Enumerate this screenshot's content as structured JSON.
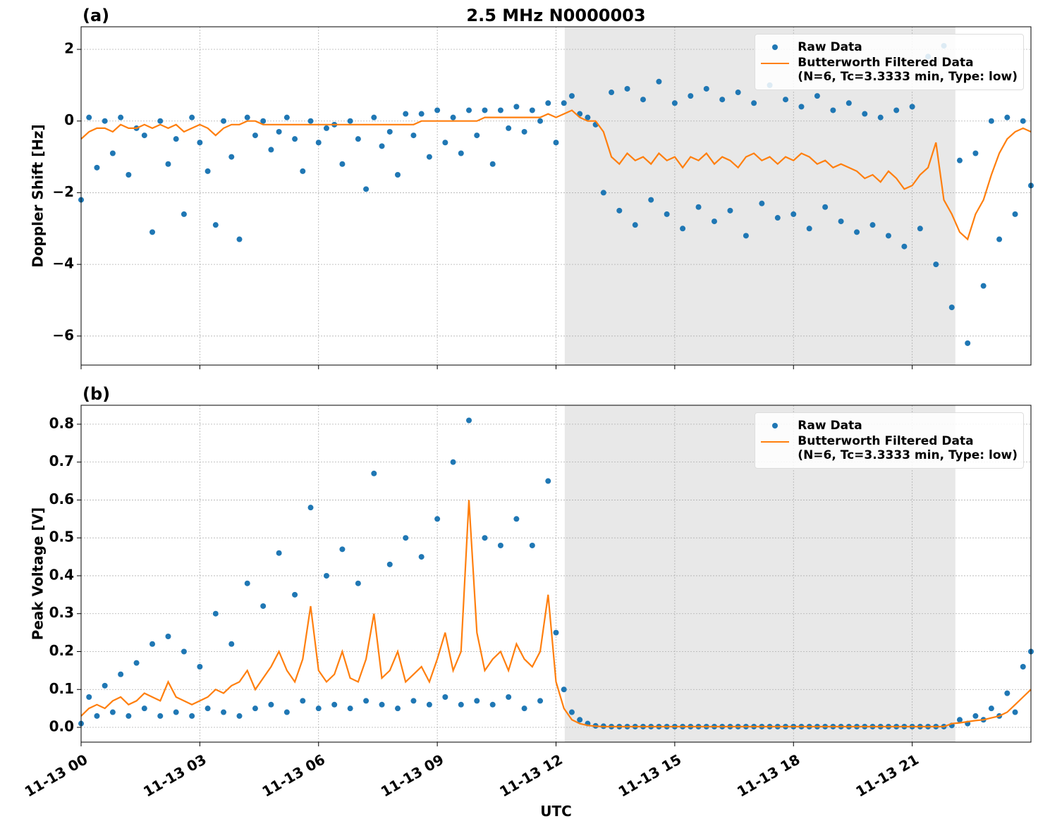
{
  "chart_data": [
    {
      "type": "line",
      "panel_label": "(a)",
      "title": "2.5 MHz N0000003",
      "ylabel": "Doppler Shift [Hz]",
      "xlim": [
        0,
        24
      ],
      "xticks": [
        0,
        3,
        6,
        9,
        12,
        15,
        18,
        21
      ],
      "ylim": [
        -6.81,
        2.63
      ],
      "yticks": [
        {
          "value": -6,
          "label": "−6"
        },
        {
          "value": -4,
          "label": "−4"
        },
        {
          "value": -2,
          "label": "−2"
        },
        0,
        2
      ],
      "grid": true,
      "legend": "upper right",
      "shaded_span": [
        12.22,
        22.09
      ],
      "x": [
        0,
        0.2,
        0.4,
        0.6,
        0.8,
        1,
        1.2,
        1.4,
        1.6,
        1.8,
        2,
        2.2,
        2.4,
        2.6,
        2.8,
        3,
        3.2,
        3.4,
        3.6,
        3.8,
        4,
        4.2,
        4.4,
        4.6,
        4.8,
        5,
        5.2,
        5.4,
        5.6,
        5.8,
        6,
        6.2,
        6.4,
        6.6,
        6.8,
        7,
        7.2,
        7.4,
        7.6,
        7.8,
        8,
        8.2,
        8.4,
        8.6,
        8.8,
        9,
        9.2,
        9.4,
        9.6,
        9.8,
        10,
        10.2,
        10.4,
        10.6,
        10.8,
        11,
        11.2,
        11.4,
        11.6,
        11.8,
        12,
        12.2,
        12.4,
        12.6,
        12.8,
        13,
        13.2,
        13.4,
        13.6,
        13.8,
        14,
        14.2,
        14.4,
        14.6,
        14.8,
        15,
        15.2,
        15.4,
        15.6,
        15.8,
        16,
        16.2,
        16.4,
        16.6,
        16.8,
        17,
        17.2,
        17.4,
        17.6,
        17.8,
        18,
        18.2,
        18.4,
        18.6,
        18.8,
        19,
        19.2,
        19.4,
        19.6,
        19.8,
        20,
        20.2,
        20.4,
        20.6,
        20.8,
        21,
        21.2,
        21.4,
        21.6,
        21.8,
        22,
        22.2,
        22.4,
        22.6,
        22.8,
        23,
        23.2,
        23.4,
        23.6,
        23.8,
        24
      ],
      "series": [
        {
          "name": "Raw Data",
          "mode": "markers",
          "color": "#1f77b4",
          "values": [
            -2.2,
            0.1,
            -1.3,
            0,
            -0.9,
            0.1,
            -1.5,
            -0.2,
            -0.4,
            -3.1,
            0,
            -1.2,
            -0.5,
            -2.6,
            0.1,
            -0.6,
            -1.4,
            -2.9,
            0,
            -1.0,
            -3.3,
            0.1,
            -0.4,
            0,
            -0.8,
            -0.3,
            0.1,
            -0.5,
            -1.4,
            0,
            -0.6,
            -0.2,
            -0.1,
            -1.2,
            0,
            -0.5,
            -1.9,
            0.1,
            -0.7,
            -0.3,
            -1.5,
            0.2,
            -0.4,
            0.2,
            -1.0,
            0.3,
            -0.6,
            0.1,
            -0.9,
            0.3,
            -0.4,
            0.3,
            -1.2,
            0.3,
            -0.2,
            0.4,
            -0.3,
            0.3,
            0,
            0.5,
            -0.6,
            0.5,
            0.7,
            0.2,
            0.1,
            -0.1,
            -2.0,
            0.8,
            -2.5,
            0.9,
            -2.9,
            0.6,
            -2.2,
            1.1,
            -2.6,
            0.5,
            -3.0,
            0.7,
            -2.4,
            0.9,
            -2.8,
            0.6,
            -2.5,
            0.8,
            -3.2,
            0.5,
            -2.3,
            1.0,
            -2.7,
            0.6,
            -2.6,
            0.4,
            -3.0,
            0.7,
            -2.4,
            0.3,
            -2.8,
            0.5,
            -3.1,
            0.2,
            -2.9,
            0.1,
            -3.2,
            0.3,
            -3.5,
            0.4,
            -3.0,
            1.8,
            -4.0,
            2.1,
            -5.2,
            -1.1,
            -6.2,
            -0.9,
            -4.6,
            0,
            -3.3,
            0.1,
            -2.6,
            0,
            -1.8
          ]
        },
        {
          "name": "Butterworth Filtered Data\n(N=6, Tc=3.3333 min, Type: low)",
          "mode": "lines",
          "color": "#ff7f0e",
          "values": [
            -0.5,
            -0.3,
            -0.2,
            -0.2,
            -0.3,
            -0.1,
            -0.2,
            -0.2,
            -0.1,
            -0.2,
            -0.1,
            -0.2,
            -0.1,
            -0.3,
            -0.2,
            -0.1,
            -0.2,
            -0.4,
            -0.2,
            -0.1,
            -0.1,
            0,
            0,
            -0.1,
            -0.1,
            -0.1,
            -0.1,
            -0.1,
            -0.1,
            -0.1,
            -0.1,
            -0.1,
            -0.1,
            -0.1,
            -0.1,
            -0.1,
            -0.1,
            -0.1,
            -0.1,
            -0.1,
            -0.1,
            -0.1,
            -0.1,
            0,
            0,
            0,
            0,
            0,
            0,
            0,
            0,
            0.1,
            0.1,
            0.1,
            0.1,
            0.1,
            0.1,
            0.1,
            0.1,
            0.2,
            0.1,
            0.2,
            0.3,
            0.1,
            0,
            0,
            -0.3,
            -1.0,
            -1.2,
            -0.9,
            -1.1,
            -1.0,
            -1.2,
            -0.9,
            -1.1,
            -1.0,
            -1.3,
            -1.0,
            -1.1,
            -0.9,
            -1.2,
            -1.0,
            -1.1,
            -1.3,
            -1.0,
            -0.9,
            -1.1,
            -1.0,
            -1.2,
            -1.0,
            -1.1,
            -0.9,
            -1.0,
            -1.2,
            -1.1,
            -1.3,
            -1.2,
            -1.3,
            -1.4,
            -1.6,
            -1.5,
            -1.7,
            -1.4,
            -1.6,
            -1.9,
            -1.8,
            -1.5,
            -1.3,
            -0.6,
            -2.2,
            -2.6,
            -3.1,
            -3.3,
            -2.6,
            -2.2,
            -1.5,
            -0.9,
            -0.5,
            -0.3,
            -0.2,
            -0.3
          ]
        }
      ]
    },
    {
      "type": "line",
      "panel_label": "(b)",
      "ylabel": "Peak Voltage [V]",
      "xlabel": "UTC",
      "xlim": [
        0,
        24
      ],
      "xticks": [
        {
          "value": 0,
          "label": "11-13 00"
        },
        {
          "value": 3,
          "label": "11-13 03"
        },
        {
          "value": 6,
          "label": "11-13 06"
        },
        {
          "value": 9,
          "label": "11-13 09"
        },
        {
          "value": 12,
          "label": "11-13 12"
        },
        {
          "value": 15,
          "label": "11-13 15"
        },
        {
          "value": 18,
          "label": "11-13 18"
        },
        {
          "value": 21,
          "label": "11-13 21"
        }
      ],
      "ylim": [
        -0.039,
        0.85
      ],
      "yticks": [
        {
          "value": 0,
          "label": "0.0"
        },
        0.1,
        0.2,
        0.3,
        0.4,
        0.5,
        0.6,
        0.7,
        0.8
      ],
      "grid": true,
      "legend": "upper right",
      "shaded_span": [
        12.22,
        22.09
      ],
      "x": [
        0,
        0.2,
        0.4,
        0.6,
        0.8,
        1,
        1.2,
        1.4,
        1.6,
        1.8,
        2,
        2.2,
        2.4,
        2.6,
        2.8,
        3,
        3.2,
        3.4,
        3.6,
        3.8,
        4,
        4.2,
        4.4,
        4.6,
        4.8,
        5,
        5.2,
        5.4,
        5.6,
        5.8,
        6,
        6.2,
        6.4,
        6.6,
        6.8,
        7,
        7.2,
        7.4,
        7.6,
        7.8,
        8,
        8.2,
        8.4,
        8.6,
        8.8,
        9,
        9.2,
        9.4,
        9.6,
        9.8,
        10,
        10.2,
        10.4,
        10.6,
        10.8,
        11,
        11.2,
        11.4,
        11.6,
        11.8,
        12,
        12.2,
        12.4,
        12.6,
        12.8,
        13,
        13.2,
        13.4,
        13.6,
        13.8,
        14,
        14.2,
        14.4,
        14.6,
        14.8,
        15,
        15.2,
        15.4,
        15.6,
        15.8,
        16,
        16.2,
        16.4,
        16.6,
        16.8,
        17,
        17.2,
        17.4,
        17.6,
        17.8,
        18,
        18.2,
        18.4,
        18.6,
        18.8,
        19,
        19.2,
        19.4,
        19.6,
        19.8,
        20,
        20.2,
        20.4,
        20.6,
        20.8,
        21,
        21.2,
        21.4,
        21.6,
        21.8,
        22,
        22.2,
        22.4,
        22.6,
        22.8,
        23,
        23.2,
        23.4,
        23.6,
        23.8,
        24
      ],
      "series": [
        {
          "name": "Raw Data",
          "mode": "markers",
          "color": "#1f77b4",
          "values": [
            0.01,
            0.08,
            0.03,
            0.11,
            0.04,
            0.14,
            0.03,
            0.17,
            0.05,
            0.22,
            0.03,
            0.24,
            0.04,
            0.2,
            0.03,
            0.16,
            0.05,
            0.3,
            0.04,
            0.22,
            0.03,
            0.38,
            0.05,
            0.32,
            0.06,
            0.46,
            0.04,
            0.35,
            0.07,
            0.58,
            0.05,
            0.4,
            0.06,
            0.47,
            0.05,
            0.38,
            0.07,
            0.67,
            0.06,
            0.43,
            0.05,
            0.5,
            0.07,
            0.45,
            0.06,
            0.55,
            0.08,
            0.7,
            0.06,
            0.81,
            0.07,
            0.5,
            0.06,
            0.48,
            0.08,
            0.55,
            0.05,
            0.48,
            0.07,
            0.65,
            0.25,
            0.1,
            0.04,
            0.02,
            0.01,
            0.004,
            0.003,
            0.002,
            0.002,
            0.002,
            0.002,
            0.002,
            0.002,
            0.002,
            0.002,
            0.002,
            0.002,
            0.002,
            0.002,
            0.002,
            0.002,
            0.002,
            0.002,
            0.002,
            0.002,
            0.002,
            0.002,
            0.002,
            0.002,
            0.002,
            0.002,
            0.002,
            0.002,
            0.002,
            0.002,
            0.002,
            0.002,
            0.002,
            0.002,
            0.002,
            0.002,
            0.002,
            0.002,
            0.002,
            0.002,
            0.002,
            0.002,
            0.002,
            0.002,
            0.002,
            0.005,
            0.02,
            0.01,
            0.03,
            0.02,
            0.05,
            0.03,
            0.09,
            0.04,
            0.16,
            0.2
          ]
        },
        {
          "name": "Butterworth Filtered Data\n(N=6, Tc=3.3333 min, Type: low)",
          "mode": "lines",
          "color": "#ff7f0e",
          "values": [
            0.03,
            0.05,
            0.06,
            0.05,
            0.07,
            0.08,
            0.06,
            0.07,
            0.09,
            0.08,
            0.07,
            0.12,
            0.08,
            0.07,
            0.06,
            0.07,
            0.08,
            0.1,
            0.09,
            0.11,
            0.12,
            0.15,
            0.1,
            0.13,
            0.16,
            0.2,
            0.15,
            0.12,
            0.18,
            0.32,
            0.15,
            0.12,
            0.14,
            0.2,
            0.13,
            0.12,
            0.18,
            0.3,
            0.13,
            0.15,
            0.2,
            0.12,
            0.14,
            0.16,
            0.12,
            0.18,
            0.25,
            0.15,
            0.2,
            0.6,
            0.25,
            0.15,
            0.18,
            0.2,
            0.15,
            0.22,
            0.18,
            0.16,
            0.2,
            0.35,
            0.12,
            0.05,
            0.02,
            0.01,
            0.005,
            0.003,
            0.002,
            0.002,
            0.002,
            0.002,
            0.002,
            0.002,
            0.002,
            0.002,
            0.002,
            0.002,
            0.002,
            0.002,
            0.002,
            0.002,
            0.002,
            0.002,
            0.002,
            0.002,
            0.002,
            0.002,
            0.002,
            0.002,
            0.002,
            0.002,
            0.002,
            0.002,
            0.002,
            0.002,
            0.002,
            0.002,
            0.002,
            0.002,
            0.002,
            0.002,
            0.002,
            0.002,
            0.002,
            0.002,
            0.002,
            0.002,
            0.002,
            0.002,
            0.002,
            0.002,
            0.01,
            0.012,
            0.015,
            0.018,
            0.02,
            0.025,
            0.03,
            0.04,
            0.06,
            0.08,
            0.1
          ]
        }
      ]
    }
  ]
}
